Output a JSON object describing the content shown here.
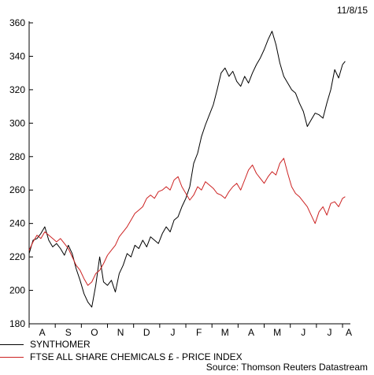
{
  "header": {
    "date": "11/8/15"
  },
  "source": "Source: Thomson Reuters Datastream",
  "colors": {
    "synthomer": "#000000",
    "ftse": "#cc2222"
  },
  "chart_data": {
    "type": "line",
    "ylim": [
      180,
      360
    ],
    "yticks": [
      180,
      200,
      220,
      240,
      260,
      280,
      300,
      320,
      340,
      360
    ],
    "xlim": [
      0,
      12.3
    ],
    "months": [
      "A",
      "S",
      "O",
      "N",
      "D",
      "J",
      "F",
      "M",
      "A",
      "M",
      "J",
      "J",
      "A"
    ],
    "grid": false,
    "legend_position": "bottom-left",
    "series": [
      {
        "name": "SYNTHOMER",
        "color": "#000000",
        "points": [
          [
            0.0,
            222
          ],
          [
            0.15,
            230
          ],
          [
            0.3,
            231
          ],
          [
            0.45,
            234
          ],
          [
            0.6,
            238
          ],
          [
            0.75,
            230
          ],
          [
            0.9,
            226
          ],
          [
            1.05,
            228
          ],
          [
            1.2,
            225
          ],
          [
            1.35,
            221
          ],
          [
            1.5,
            227
          ],
          [
            1.65,
            222
          ],
          [
            1.8,
            213
          ],
          [
            1.95,
            206
          ],
          [
            2.1,
            198
          ],
          [
            2.25,
            193
          ],
          [
            2.4,
            190
          ],
          [
            2.55,
            203
          ],
          [
            2.7,
            220
          ],
          [
            2.85,
            205
          ],
          [
            3.0,
            203
          ],
          [
            3.15,
            206
          ],
          [
            3.3,
            199
          ],
          [
            3.45,
            210
          ],
          [
            3.6,
            215
          ],
          [
            3.75,
            222
          ],
          [
            3.9,
            220
          ],
          [
            4.05,
            227
          ],
          [
            4.2,
            225
          ],
          [
            4.35,
            230
          ],
          [
            4.5,
            226
          ],
          [
            4.65,
            232
          ],
          [
            4.8,
            230
          ],
          [
            4.95,
            228
          ],
          [
            5.1,
            234
          ],
          [
            5.25,
            238
          ],
          [
            5.4,
            235
          ],
          [
            5.55,
            242
          ],
          [
            5.7,
            244
          ],
          [
            5.85,
            250
          ],
          [
            6.0,
            255
          ],
          [
            6.15,
            262
          ],
          [
            6.3,
            276
          ],
          [
            6.45,
            282
          ],
          [
            6.6,
            292
          ],
          [
            6.75,
            299
          ],
          [
            6.9,
            305
          ],
          [
            7.05,
            311
          ],
          [
            7.2,
            320
          ],
          [
            7.35,
            330
          ],
          [
            7.5,
            333
          ],
          [
            7.65,
            328
          ],
          [
            7.8,
            331
          ],
          [
            7.95,
            325
          ],
          [
            8.1,
            322
          ],
          [
            8.25,
            328
          ],
          [
            8.4,
            324
          ],
          [
            8.55,
            330
          ],
          [
            8.7,
            335
          ],
          [
            8.85,
            339
          ],
          [
            9.0,
            344
          ],
          [
            9.15,
            350
          ],
          [
            9.3,
            355
          ],
          [
            9.45,
            347
          ],
          [
            9.6,
            336
          ],
          [
            9.75,
            328
          ],
          [
            9.9,
            324
          ],
          [
            10.05,
            320
          ],
          [
            10.2,
            318
          ],
          [
            10.35,
            312
          ],
          [
            10.5,
            307
          ],
          [
            10.65,
            298
          ],
          [
            10.8,
            302
          ],
          [
            10.95,
            306
          ],
          [
            11.1,
            305
          ],
          [
            11.25,
            303
          ],
          [
            11.4,
            312
          ],
          [
            11.55,
            320
          ],
          [
            11.7,
            332
          ],
          [
            11.85,
            327
          ],
          [
            12.0,
            335
          ],
          [
            12.1,
            337
          ]
        ]
      },
      {
        "name": "FTSE ALL SHARE CHEMICALS £ - PRICE INDEX",
        "color": "#cc2222",
        "points": [
          [
            0.0,
            224
          ],
          [
            0.15,
            229
          ],
          [
            0.3,
            233
          ],
          [
            0.45,
            231
          ],
          [
            0.6,
            235
          ],
          [
            0.75,
            233
          ],
          [
            0.9,
            231
          ],
          [
            1.05,
            229
          ],
          [
            1.2,
            231
          ],
          [
            1.35,
            228
          ],
          [
            1.5,
            225
          ],
          [
            1.65,
            220
          ],
          [
            1.8,
            215
          ],
          [
            1.95,
            212
          ],
          [
            2.1,
            207
          ],
          [
            2.25,
            203
          ],
          [
            2.4,
            205
          ],
          [
            2.55,
            210
          ],
          [
            2.7,
            212
          ],
          [
            2.85,
            216
          ],
          [
            3.0,
            221
          ],
          [
            3.15,
            224
          ],
          [
            3.3,
            227
          ],
          [
            3.45,
            232
          ],
          [
            3.6,
            235
          ],
          [
            3.75,
            238
          ],
          [
            3.9,
            242
          ],
          [
            4.05,
            246
          ],
          [
            4.2,
            248
          ],
          [
            4.35,
            250
          ],
          [
            4.5,
            255
          ],
          [
            4.65,
            257
          ],
          [
            4.8,
            255
          ],
          [
            4.95,
            259
          ],
          [
            5.1,
            260
          ],
          [
            5.25,
            262
          ],
          [
            5.4,
            260
          ],
          [
            5.55,
            266
          ],
          [
            5.7,
            268
          ],
          [
            5.85,
            262
          ],
          [
            6.0,
            258
          ],
          [
            6.15,
            254
          ],
          [
            6.3,
            257
          ],
          [
            6.45,
            262
          ],
          [
            6.6,
            260
          ],
          [
            6.75,
            265
          ],
          [
            6.9,
            263
          ],
          [
            7.05,
            261
          ],
          [
            7.2,
            258
          ],
          [
            7.35,
            257
          ],
          [
            7.5,
            255
          ],
          [
            7.65,
            259
          ],
          [
            7.8,
            262
          ],
          [
            7.95,
            264
          ],
          [
            8.1,
            260
          ],
          [
            8.25,
            266
          ],
          [
            8.4,
            272
          ],
          [
            8.55,
            275
          ],
          [
            8.7,
            270
          ],
          [
            8.85,
            267
          ],
          [
            9.0,
            264
          ],
          [
            9.15,
            268
          ],
          [
            9.3,
            271
          ],
          [
            9.45,
            269
          ],
          [
            9.6,
            276
          ],
          [
            9.75,
            279
          ],
          [
            9.9,
            270
          ],
          [
            10.05,
            262
          ],
          [
            10.2,
            258
          ],
          [
            10.35,
            256
          ],
          [
            10.5,
            253
          ],
          [
            10.65,
            250
          ],
          [
            10.8,
            245
          ],
          [
            10.95,
            240
          ],
          [
            11.1,
            247
          ],
          [
            11.25,
            250
          ],
          [
            11.4,
            245
          ],
          [
            11.55,
            252
          ],
          [
            11.7,
            253
          ],
          [
            11.85,
            250
          ],
          [
            12.0,
            255
          ],
          [
            12.1,
            256
          ]
        ]
      }
    ]
  }
}
